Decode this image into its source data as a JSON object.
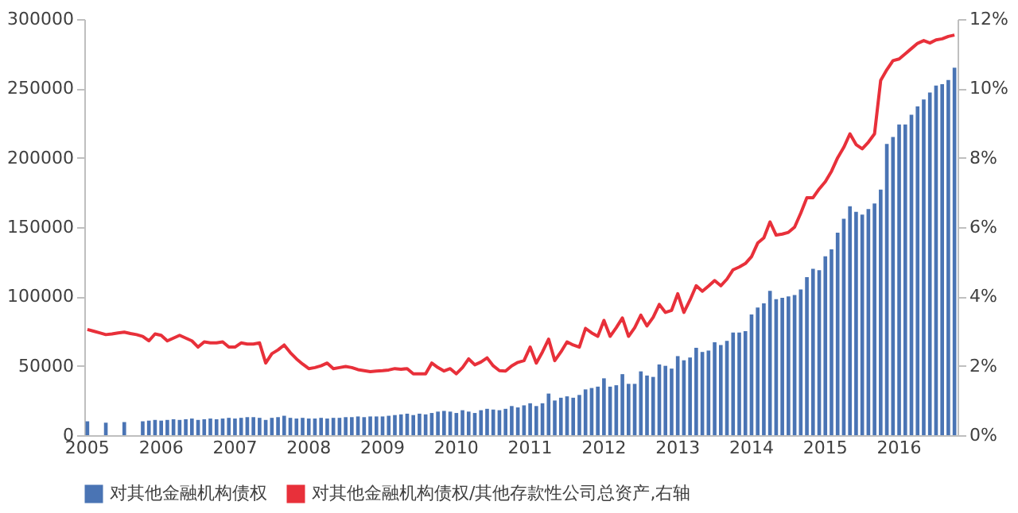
{
  "chart_data": {
    "type": "bar",
    "categories": [
      "2005",
      null,
      null,
      null,
      null,
      null,
      null,
      null,
      null,
      null,
      null,
      null,
      "2006",
      null,
      null,
      null,
      null,
      null,
      null,
      null,
      null,
      null,
      null,
      null,
      "2007",
      null,
      null,
      null,
      null,
      null,
      null,
      null,
      null,
      null,
      null,
      null,
      "2008",
      null,
      null,
      null,
      null,
      null,
      null,
      null,
      null,
      null,
      null,
      null,
      "2009",
      null,
      null,
      null,
      null,
      null,
      null,
      null,
      null,
      null,
      null,
      null,
      "2010",
      null,
      null,
      null,
      null,
      null,
      null,
      null,
      null,
      null,
      null,
      null,
      "2011",
      null,
      null,
      null,
      null,
      null,
      null,
      null,
      null,
      null,
      null,
      null,
      "2012",
      null,
      null,
      null,
      null,
      null,
      null,
      null,
      null,
      null,
      null,
      null,
      "2013",
      null,
      null,
      null,
      null,
      null,
      null,
      null,
      null,
      null,
      null,
      null,
      "2014",
      null,
      null,
      null,
      null,
      null,
      null,
      null,
      null,
      null,
      null,
      null,
      "2015",
      null,
      null,
      null,
      null,
      null,
      null,
      null,
      null,
      null,
      null,
      null,
      "2016",
      null,
      null,
      null,
      null,
      null,
      null,
      null,
      null,
      null
    ],
    "series": [
      {
        "name": "对其他金融机构债权",
        "color": "#4a74b4",
        "values": [
          10000,
          null,
          null,
          9000,
          null,
          null,
          9500,
          null,
          null,
          10000,
          10500,
          11000,
          10500,
          11000,
          11500,
          11000,
          11500,
          12000,
          11000,
          11500,
          12000,
          11500,
          12000,
          12500,
          12000,
          12500,
          13000,
          13000,
          12500,
          11000,
          12500,
          13000,
          14000,
          12500,
          12000,
          12500,
          12000,
          12000,
          12500,
          12000,
          12500,
          12500,
          13000,
          13000,
          13500,
          13000,
          13500,
          13500,
          13500,
          14000,
          14500,
          15000,
          15500,
          14500,
          15500,
          15000,
          16000,
          17000,
          17500,
          17000,
          16000,
          18000,
          17000,
          16000,
          18000,
          19000,
          18500,
          18000,
          19000,
          21000,
          20000,
          21500,
          23000,
          21000,
          23000,
          30000,
          25000,
          27000,
          28000,
          27000,
          29000,
          33000,
          34000,
          35000,
          41000,
          35000,
          36000,
          44000,
          37000,
          37000,
          46000,
          43000,
          42000,
          51000,
          50000,
          48000,
          57000,
          54000,
          56000,
          63000,
          60000,
          61000,
          67000,
          65000,
          68000,
          74000,
          74000,
          75000,
          87000,
          92000,
          95000,
          104000,
          98000,
          99000,
          100000,
          101000,
          105000,
          114000,
          120000,
          119000,
          129000,
          134000,
          146000,
          156000,
          165000,
          161000,
          159000,
          163000,
          167000,
          177000,
          210000,
          215000,
          224000,
          224000,
          231000,
          237000,
          242000,
          247000,
          252000,
          253000,
          256000,
          265000
        ]
      },
      {
        "name": "对其他金融机构债权/其他存款性公司总资产,右轴",
        "type": "line",
        "axis": "y2",
        "color": "#e8303a",
        "values": [
          3.05,
          3.0,
          2.95,
          2.9,
          2.92,
          2.95,
          2.97,
          2.93,
          2.9,
          2.85,
          2.72,
          2.92,
          2.88,
          2.72,
          2.8,
          2.88,
          2.8,
          2.72,
          2.54,
          2.69,
          2.66,
          2.66,
          2.69,
          2.54,
          2.54,
          2.66,
          2.63,
          2.63,
          2.66,
          2.08,
          2.35,
          2.46,
          2.6,
          2.38,
          2.2,
          2.05,
          1.92,
          1.95,
          2.0,
          2.08,
          1.92,
          1.95,
          1.98,
          1.95,
          1.89,
          1.86,
          1.83,
          1.85,
          1.86,
          1.88,
          1.92,
          1.9,
          1.92,
          1.77,
          1.77,
          1.77,
          2.08,
          1.95,
          1.85,
          1.92,
          1.77,
          1.95,
          2.2,
          2.03,
          2.11,
          2.23,
          2.0,
          1.86,
          1.85,
          2.0,
          2.1,
          2.15,
          2.54,
          2.08,
          2.4,
          2.77,
          2.15,
          2.4,
          2.69,
          2.6,
          2.54,
          3.08,
          2.95,
          2.85,
          3.31,
          2.85,
          3.1,
          3.38,
          2.85,
          3.1,
          3.46,
          3.15,
          3.4,
          3.77,
          3.54,
          3.6,
          4.08,
          3.54,
          3.9,
          4.31,
          4.15,
          4.3,
          4.46,
          4.31,
          4.5,
          4.77,
          4.85,
          4.95,
          5.15,
          5.54,
          5.69,
          6.15,
          5.77,
          5.8,
          5.85,
          6.0,
          6.4,
          6.85,
          6.85,
          7.1,
          7.31,
          7.61,
          8.0,
          8.3,
          8.69,
          8.38,
          8.26,
          8.45,
          8.69,
          10.23,
          10.54,
          10.8,
          10.85,
          11.0,
          11.15,
          11.3,
          11.38,
          11.31,
          11.4,
          11.43,
          11.5,
          11.54
        ]
      }
    ],
    "ylim": [
      0,
      300000
    ],
    "yticks": [
      0,
      50000,
      100000,
      150000,
      200000,
      250000,
      300000
    ],
    "y2lim": [
      0,
      12
    ],
    "y2ticks": [
      {
        "value": 0,
        "label": "0%"
      },
      {
        "value": 2,
        "label": "2%"
      },
      {
        "value": 4,
        "label": "4%"
      },
      {
        "value": 6,
        "label": "6%"
      },
      {
        "value": 8,
        "label": "8%"
      },
      {
        "value": 10,
        "label": "10%"
      },
      {
        "value": 12,
        "label": "12%"
      }
    ],
    "legend": "bottom",
    "grid": false
  }
}
